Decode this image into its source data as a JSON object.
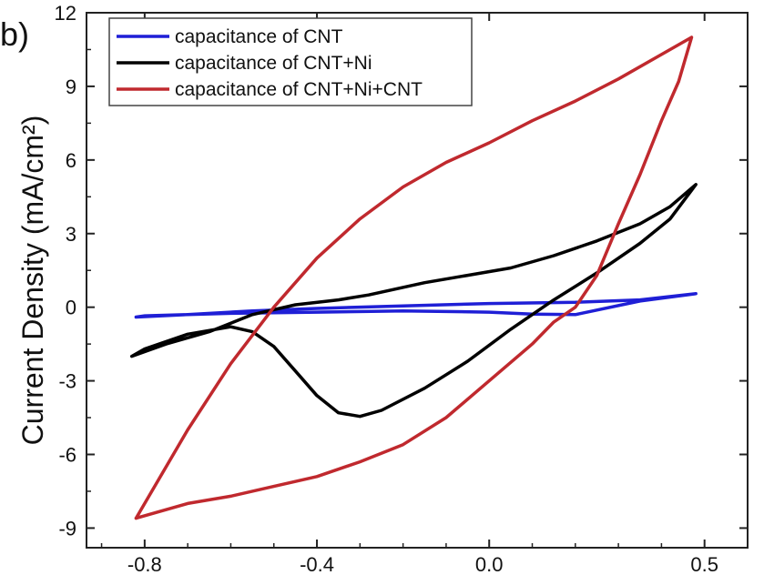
{
  "chart_data": {
    "type": "line",
    "panel_label": "b)",
    "title": "",
    "xlabel": "",
    "ylabel": "Current Density (mA/cm²)",
    "xlim": [
      -0.935,
      0.6
    ],
    "ylim": [
      -9.8,
      12
    ],
    "x_ticks": [
      -0.8,
      -0.4,
      0.0,
      0.5
    ],
    "x_tick_labels": [
      "-0.8",
      "-0.4",
      "0.0",
      "0.5"
    ],
    "y_ticks": [
      -9,
      -6,
      -3,
      0,
      3,
      6,
      9,
      12
    ],
    "y_tick_labels": [
      "-9",
      "-6",
      "-3",
      "0",
      "3",
      "6",
      "9",
      "12"
    ],
    "grid": false,
    "legend_position": "top-left",
    "series": [
      {
        "name": "capacitance of CNT",
        "color": "#1f1fd6",
        "x": [
          -0.82,
          -0.7,
          -0.55,
          -0.4,
          -0.2,
          0.0,
          0.2,
          0.35,
          0.48,
          0.35,
          0.2,
          0.1,
          0.0,
          -0.2,
          -0.4,
          -0.6,
          -0.8,
          -0.82
        ],
        "y": [
          -0.4,
          -0.3,
          -0.15,
          -0.05,
          0.05,
          0.15,
          0.2,
          0.3,
          0.55,
          0.25,
          -0.3,
          -0.28,
          -0.2,
          -0.15,
          -0.2,
          -0.25,
          -0.35,
          -0.4
        ]
      },
      {
        "name": "capacitance of CNT+Ni",
        "color": "#000000",
        "x": [
          -0.83,
          -0.75,
          -0.65,
          -0.55,
          -0.45,
          -0.35,
          -0.28,
          -0.15,
          -0.05,
          0.05,
          0.15,
          0.25,
          0.35,
          0.42,
          0.48,
          0.42,
          0.35,
          0.25,
          0.15,
          0.05,
          -0.05,
          -0.15,
          -0.25,
          -0.3,
          -0.35,
          -0.4,
          -0.45,
          -0.5,
          -0.55,
          -0.6,
          -0.7,
          -0.8,
          -0.83
        ],
        "y": [
          -2.0,
          -1.5,
          -1.0,
          -0.3,
          0.1,
          0.3,
          0.5,
          1.0,
          1.3,
          1.6,
          2.1,
          2.7,
          3.4,
          4.1,
          5.0,
          3.6,
          2.6,
          1.4,
          0.3,
          -0.9,
          -2.2,
          -3.3,
          -4.2,
          -4.45,
          -4.3,
          -3.6,
          -2.6,
          -1.6,
          -1.0,
          -0.8,
          -1.1,
          -1.7,
          -2.0
        ]
      },
      {
        "name": "capacitance of CNT+Ni+CNT",
        "color": "#c0292e",
        "x": [
          -0.82,
          -0.7,
          -0.6,
          -0.5,
          -0.4,
          -0.3,
          -0.2,
          -0.1,
          0.0,
          0.1,
          0.2,
          0.3,
          0.4,
          0.47,
          0.44,
          0.4,
          0.35,
          0.3,
          0.25,
          0.2,
          0.15,
          0.1,
          0.0,
          -0.1,
          -0.2,
          -0.3,
          -0.4,
          -0.5,
          -0.6,
          -0.7,
          -0.82
        ],
        "y": [
          -8.6,
          -5.0,
          -2.3,
          0.0,
          2.0,
          3.6,
          4.9,
          5.9,
          6.7,
          7.6,
          8.4,
          9.3,
          10.3,
          11.0,
          9.2,
          7.6,
          5.4,
          3.4,
          1.3,
          0.0,
          -0.6,
          -1.5,
          -3.0,
          -4.5,
          -5.6,
          -6.3,
          -6.9,
          -7.3,
          -7.7,
          -8.0,
          -8.6
        ]
      }
    ]
  }
}
